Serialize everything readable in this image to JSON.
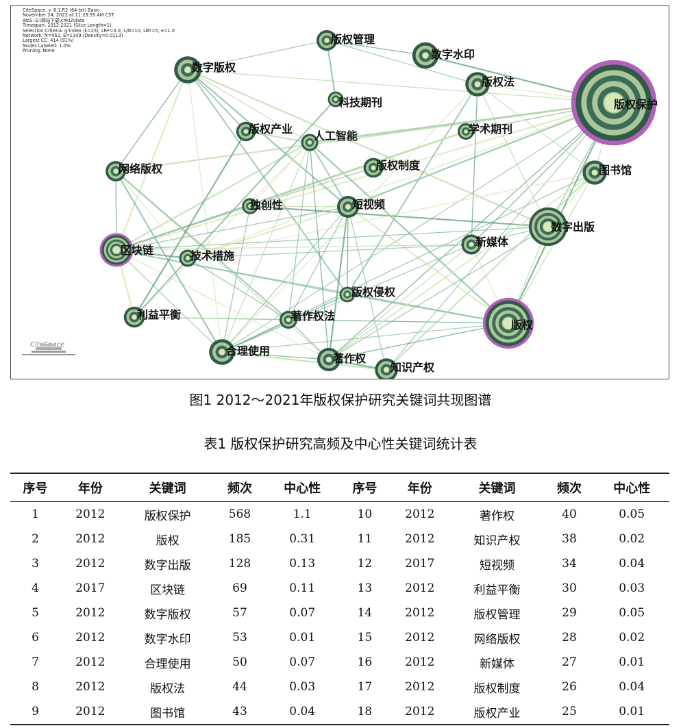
{
  "figure": {
    "meta_lines": [
      "CiteSpace, v. 6.1.R2 (64-bit) Basic",
      "November 24, 2022 at 11:23:59 AM CST",
      "WoS: E:\\网站下载\\cnki2\\data",
      "Timespan: 2012-2021 (Slice Length=1)",
      "Selection Criteria: g-index (k=25), LRF=3.0, L/N=10, LBY=5, e=1.0",
      "Network: N=452, E=1149 (Density=0.0113)",
      "Largest CC: 414 (91%)",
      "Nodes Labeled: 1.0%",
      "Pruning: None"
    ],
    "logo_text": "CiteSpace",
    "nodes": [
      {
        "id": "版权保护",
        "label": "版权保护",
        "size": 568,
        "ring": true
      },
      {
        "id": "版权",
        "label": "版权",
        "size": 185,
        "ring": true
      },
      {
        "id": "数字出版",
        "label": "数字出版",
        "size": 128,
        "ring": false
      },
      {
        "id": "区块链",
        "label": "区块链",
        "size": 69,
        "ring": true
      },
      {
        "id": "数字版权",
        "label": "数字版权",
        "size": 57,
        "ring": false
      },
      {
        "id": "数字水印",
        "label": "数字水印",
        "size": 53,
        "ring": false
      },
      {
        "id": "合理使用",
        "label": "合理使用",
        "size": 50,
        "ring": false
      },
      {
        "id": "版权法",
        "label": "版权法",
        "size": 44,
        "ring": false
      },
      {
        "id": "图书馆",
        "label": "图书馆",
        "size": 43,
        "ring": false
      },
      {
        "id": "著作权",
        "label": "著作权",
        "size": 40,
        "ring": false
      },
      {
        "id": "知识产权",
        "label": "知识产权",
        "size": 38,
        "ring": false
      },
      {
        "id": "短视频",
        "label": "短视频",
        "size": 34,
        "ring": false
      },
      {
        "id": "利益平衡",
        "label": "利益平衡",
        "size": 30,
        "ring": false
      },
      {
        "id": "版权管理",
        "label": "版权管理",
        "size": 29,
        "ring": false
      },
      {
        "id": "网络版权",
        "label": "网络版权",
        "size": 28,
        "ring": false
      },
      {
        "id": "新媒体",
        "label": "新媒体",
        "size": 27,
        "ring": false
      },
      {
        "id": "版权制度",
        "label": "版权制度",
        "size": 26,
        "ring": false
      },
      {
        "id": "版权产业",
        "label": "版权产业",
        "size": 25,
        "ring": false
      },
      {
        "id": "科技期刊",
        "label": "科技期刊",
        "size": 14,
        "ring": false
      },
      {
        "id": "学术期刊",
        "label": "学术期刊",
        "size": 16,
        "ring": false
      },
      {
        "id": "人工智能",
        "label": "人工智能",
        "size": 18,
        "ring": false
      },
      {
        "id": "独创性",
        "label": "独创性",
        "size": 15,
        "ring": false
      },
      {
        "id": "技术措施",
        "label": "技术措施",
        "size": 18,
        "ring": false
      },
      {
        "id": "版权侵权",
        "label": "版权侵权",
        "size": 14,
        "ring": false
      },
      {
        "id": "著作权法",
        "label": "著作权法",
        "size": 20,
        "ring": false
      }
    ],
    "edges": [
      [
        "版权保护",
        "版权"
      ],
      [
        "版权保护",
        "数字出版"
      ],
      [
        "版权保护",
        "数字版权"
      ],
      [
        "版权保护",
        "区块链"
      ],
      [
        "版权保护",
        "合理使用"
      ],
      [
        "版权保护",
        "著作权"
      ],
      [
        "版权保护",
        "短视频"
      ],
      [
        "版权保护",
        "图书馆"
      ],
      [
        "版权保护",
        "版权法"
      ],
      [
        "版权保护",
        "人工智能"
      ],
      [
        "版权保护",
        "新媒体"
      ],
      [
        "版权保护",
        "学术期刊"
      ],
      [
        "版权保护",
        "网络版权"
      ],
      [
        "版权保护",
        "技术措施"
      ],
      [
        "版权保护",
        "知识产权"
      ],
      [
        "版权保护",
        "数字水印"
      ],
      [
        "版权",
        "区块链"
      ],
      [
        "版权",
        "数字出版"
      ],
      [
        "版权",
        "短视频"
      ],
      [
        "版权",
        "合理使用"
      ],
      [
        "版权",
        "著作权"
      ],
      [
        "版权",
        "人工智能"
      ],
      [
        "版权",
        "图书馆"
      ],
      [
        "版权",
        "新媒体"
      ],
      [
        "版权",
        "版权侵权"
      ],
      [
        "版权",
        "利益平衡"
      ],
      [
        "数字出版",
        "区块链"
      ],
      [
        "数字出版",
        "数字版权"
      ],
      [
        "数字出版",
        "图书馆"
      ],
      [
        "数字出版",
        "新媒体"
      ],
      [
        "数字出版",
        "独创性"
      ],
      [
        "数字出版",
        "著作权"
      ],
      [
        "数字出版",
        "版权法"
      ],
      [
        "数字版权",
        "区块链"
      ],
      [
        "数字版权",
        "版权管理"
      ],
      [
        "数字版权",
        "网络版权"
      ],
      [
        "数字版权",
        "短视频"
      ],
      [
        "数字版权",
        "人工智能"
      ],
      [
        "数字版权",
        "合理使用"
      ],
      [
        "数字版权",
        "版权侵权"
      ],
      [
        "数字版权",
        "版权产业"
      ],
      [
        "区块链",
        "短视频"
      ],
      [
        "区块链",
        "人工智能"
      ],
      [
        "区块链",
        "著作权"
      ],
      [
        "区块链",
        "合理使用"
      ],
      [
        "区块链",
        "技术措施"
      ],
      [
        "区块链",
        "版权侵权"
      ],
      [
        "区块链",
        "新媒体"
      ],
      [
        "区块链",
        "利益平衡"
      ],
      [
        "区块链",
        "独创性"
      ],
      [
        "区块链",
        "网络版权"
      ],
      [
        "区块链",
        "学术期刊"
      ],
      [
        "人工智能",
        "合理使用"
      ],
      [
        "人工智能",
        "独创性"
      ],
      [
        "人工智能",
        "短视频"
      ],
      [
        "人工智能",
        "著作权"
      ],
      [
        "人工智能",
        "著作权法"
      ],
      [
        "人工智能",
        "版权产业"
      ],
      [
        "人工智能",
        "利益平衡"
      ],
      [
        "短视频",
        "合理使用"
      ],
      [
        "短视频",
        "著作权"
      ],
      [
        "短视频",
        "著作权法"
      ],
      [
        "短视频",
        "独创性"
      ],
      [
        "短视频",
        "技术措施"
      ],
      [
        "短视频",
        "知识产权"
      ],
      [
        "短视频",
        "版权侵权"
      ],
      [
        "网络版权",
        "合理使用"
      ],
      [
        "网络版权",
        "著作权"
      ],
      [
        "网络版权",
        "技术措施"
      ],
      [
        "网络版权",
        "著作权法"
      ],
      [
        "合理使用",
        "著作权"
      ],
      [
        "合理使用",
        "独创性"
      ],
      [
        "合理使用",
        "知识产权"
      ],
      [
        "合理使用",
        "著作权法"
      ],
      [
        "合理使用",
        "新媒体"
      ],
      [
        "著作权",
        "知识产权"
      ],
      [
        "著作权",
        "著作权法"
      ],
      [
        "著作权",
        "新媒体"
      ],
      [
        "著作权",
        "图书馆"
      ],
      [
        "版权管理",
        "版权法"
      ],
      [
        "版权管理",
        "数字水印"
      ],
      [
        "版权管理",
        "科技期刊"
      ],
      [
        "版权法",
        "图书馆"
      ],
      [
        "版权法",
        "合理使用"
      ],
      [
        "版权法",
        "版权侵权"
      ],
      [
        "版权法",
        "新媒体"
      ],
      [
        "图书馆",
        "合理使用"
      ],
      [
        "图书馆",
        "知识产权"
      ],
      [
        "图书馆",
        "技术措施"
      ],
      [
        "版权制度",
        "独创性"
      ],
      [
        "版权产业",
        "利益平衡"
      ],
      [
        "技术措施",
        "著作权法"
      ],
      [
        "利益平衡",
        "著作权法"
      ],
      [
        "学术期刊",
        "独创性"
      ],
      [
        "新媒体",
        "技术措施"
      ],
      [
        "版权侵权",
        "合理使用"
      ],
      [
        "科技期刊",
        "利益平衡"
      ]
    ]
  },
  "figure_caption": "图1 2012～2021年版权保护研究关键词共现图谱",
  "table_caption": "表1 版权保护研究高频及中心性关键词统计表",
  "table": {
    "headers": [
      "序号",
      "年份",
      "关键词",
      "频次",
      "中心性",
      "序号",
      "年份",
      "关键词",
      "频次",
      "中心性"
    ],
    "rows": [
      [
        "1",
        "2012",
        "版权保护",
        "568",
        "1.1",
        "10",
        "2012",
        "著作权",
        "40",
        "0.05"
      ],
      [
        "2",
        "2012",
        "版权",
        "185",
        "0.31",
        "11",
        "2012",
        "知识产权",
        "38",
        "0.02"
      ],
      [
        "3",
        "2012",
        "数字出版",
        "128",
        "0.13",
        "12",
        "2017",
        "短视频",
        "34",
        "0.04"
      ],
      [
        "4",
        "2017",
        "区块链",
        "69",
        "0.11",
        "13",
        "2012",
        "利益平衡",
        "30",
        "0.03"
      ],
      [
        "5",
        "2012",
        "数字版权",
        "57",
        "0.07",
        "14",
        "2012",
        "版权管理",
        "29",
        "0.05"
      ],
      [
        "6",
        "2012",
        "数字水印",
        "53",
        "0.01",
        "15",
        "2012",
        "网络版权",
        "28",
        "0.02"
      ],
      [
        "7",
        "2012",
        "合理使用",
        "50",
        "0.07",
        "16",
        "2012",
        "新媒体",
        "27",
        "0.01"
      ],
      [
        "8",
        "2012",
        "版权法",
        "44",
        "0.03",
        "17",
        "2012",
        "版权制度",
        "26",
        "0.04"
      ],
      [
        "9",
        "2012",
        "图书馆",
        "43",
        "0.04",
        "18",
        "2012",
        "版权产业",
        "25",
        "0.01"
      ]
    ]
  }
}
